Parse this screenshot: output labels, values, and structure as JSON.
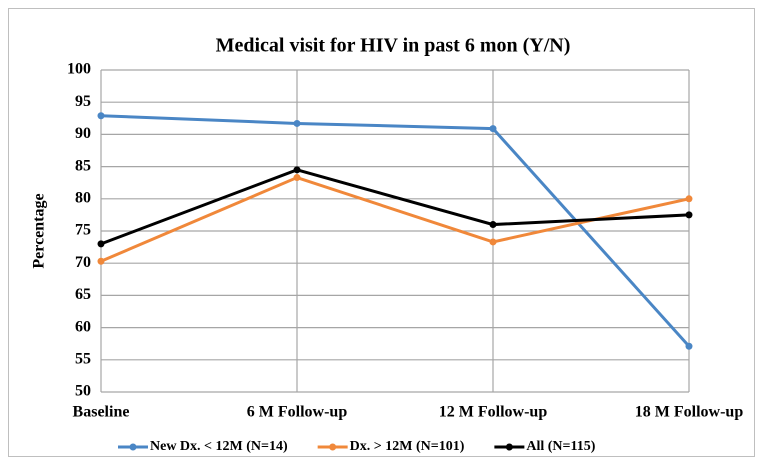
{
  "chart_data": {
    "type": "line",
    "title": "Medical visit for HIV in past 6 mon (Y/N)",
    "y_label": "Percentage",
    "categories": [
      "Baseline",
      "6 M Follow-up",
      "12 M Follow-up",
      "18 M Follow-up"
    ],
    "series": [
      {
        "name": "New Dx. < 12M (N=14)",
        "color": "#4a86c5",
        "values": [
          92.9,
          91.7,
          90.9,
          57.1
        ]
      },
      {
        "name": "Dx. > 12M (N=101)",
        "color": "#f0883a",
        "values": [
          70.3,
          83.3,
          73.3,
          80.0
        ]
      },
      {
        "name": "All (N=115)",
        "color": "#000000",
        "values": [
          73.0,
          84.5,
          76.0,
          77.5
        ]
      }
    ],
    "ylim": [
      50,
      100
    ],
    "yticks": [
      50,
      55,
      60,
      65,
      70,
      75,
      80,
      85,
      90,
      95,
      100
    ],
    "grid": true,
    "legend": "bottom"
  }
}
